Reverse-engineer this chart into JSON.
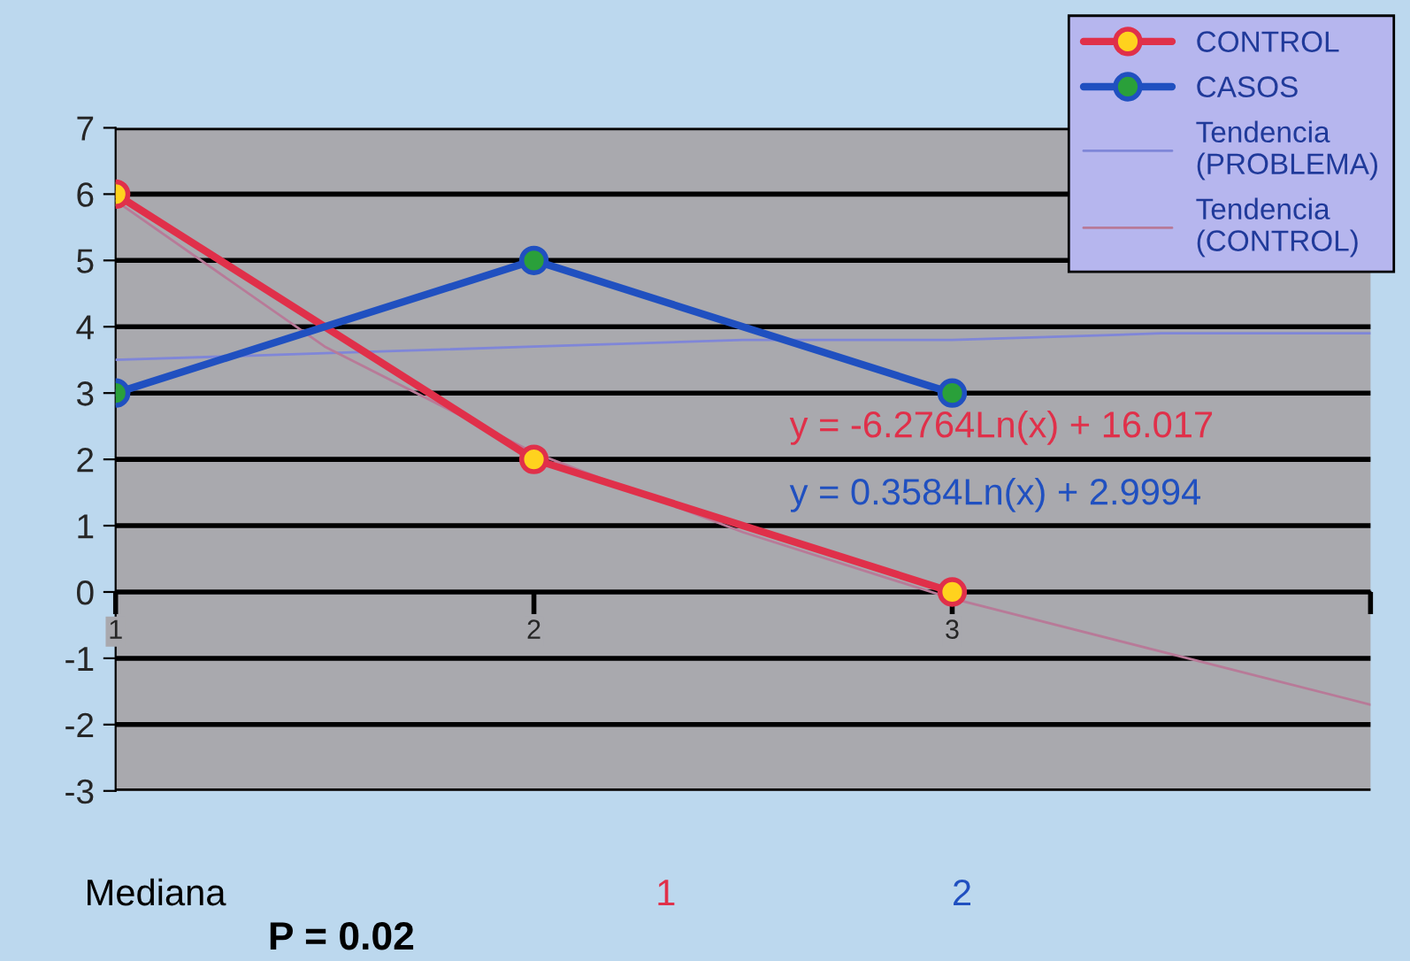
{
  "chart_data": {
    "type": "line",
    "x": [
      1,
      2,
      3
    ],
    "series": [
      {
        "name": "CONTROL",
        "color": "#e0304a",
        "values": [
          6,
          2,
          0
        ],
        "marker": "circle"
      },
      {
        "name": "CASOS",
        "color": "#2050c0",
        "values": [
          3,
          5,
          3
        ],
        "marker": "circle"
      },
      {
        "name": "Tendencia\n(PROBLEMA)",
        "color": "#7f86d8",
        "x": [
          1,
          1.5,
          2,
          2.5,
          3,
          3.5,
          4
        ],
        "values": [
          3.5,
          3.6,
          3.7,
          3.8,
          3.8,
          3.9,
          3.9
        ],
        "marker": "none"
      },
      {
        "name": "Tendencia\n(CONTROL)",
        "color": "#b87a98",
        "x": [
          1,
          1.5,
          2,
          2.5,
          3,
          3.5,
          4
        ],
        "values": [
          5.9,
          3.7,
          2.1,
          0.9,
          -0.1,
          -0.9,
          -1.7
        ],
        "marker": "none"
      }
    ],
    "xlim": [
      1,
      4
    ],
    "xticks": [
      1,
      2,
      3,
      {
        "value": 4,
        "label": null
      }
    ],
    "ylim": [
      -3,
      7
    ],
    "yticks": [
      -3,
      -2,
      -1,
      0,
      1,
      2,
      3,
      4,
      5,
      6,
      7
    ],
    "grid": "y",
    "legend": "top right",
    "annotations": [
      "y = -6.2764Ln(x) + 16.017",
      "y = 0.3584Ln(x) + 2.9994",
      "Mediana",
      "1",
      "2",
      "P = 0.02"
    ]
  }
}
